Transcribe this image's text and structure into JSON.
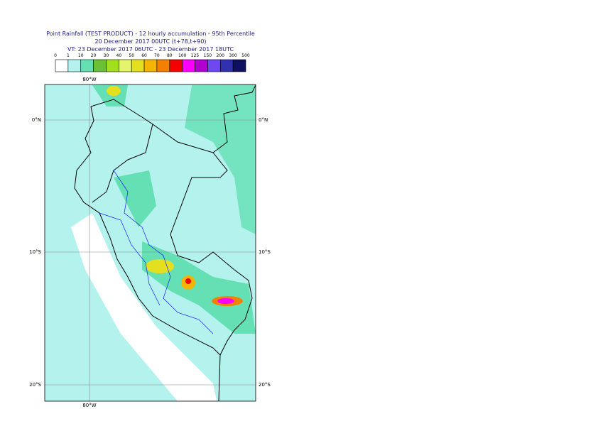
{
  "header": {
    "title": "Point Rainfall (TEST PRODUCT) - 12 hourly accumulation - 95th Percentile",
    "run": "20 December 2017 00UTC (t+78,t+90)",
    "valid": "VT: 23 December 2017 06UTC - 23 December 2017 18UTC"
  },
  "legend": {
    "thresholds": [
      0,
      1,
      10,
      20,
      30,
      40,
      50,
      60,
      70,
      80,
      100,
      125,
      150,
      200,
      300,
      500
    ],
    "colors": [
      "#ffffff",
      "#b4f2ee",
      "#64e0b4",
      "#6cc038",
      "#a0e020",
      "#e4f46c",
      "#e4e020",
      "#f4b400",
      "#f48000",
      "#f40000",
      "#ff00ff",
      "#b000d0",
      "#7048f0",
      "#3030b0",
      "#101060"
    ]
  },
  "map": {
    "lat_labels": [
      "0°N",
      "10°S",
      "20°S"
    ],
    "lon_label": "80°W"
  }
}
